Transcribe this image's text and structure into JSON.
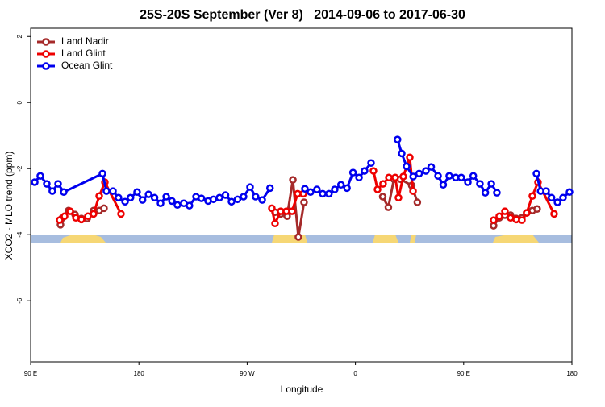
{
  "chart_data": {
    "type": "line",
    "title": "25S-20S September (Ver 8)   2014-09-06 to 2017-06-30",
    "x_label": "Longitude",
    "y_label": "XCO2 - MLO trend (ppm)",
    "xlim": [
      90,
      540
    ],
    "xticks": [
      {
        "value": 90,
        "label": "90 E"
      },
      180,
      {
        "value": 270,
        "label": "90 W"
      },
      {
        "value": 360,
        "label": "0"
      },
      {
        "value": 450,
        "label": "90 E"
      },
      {
        "value": 540,
        "label": "180"
      }
    ],
    "ylim": [
      -7.85,
      2.25
    ],
    "yticks": [
      2,
      0,
      -2,
      -4,
      -6
    ],
    "legend": "top-left",
    "series": [
      {
        "name": "Land Nadir",
        "color": "#a52a2a",
        "x": [
          114.8,
          116.2,
          121.5,
          126.9,
          132.2,
          137,
          142.3,
          147,
          151,
          null,
          293.2,
          297.9,
          303.2,
          308,
          312.6,
          317.3,
          null,
          382.7,
          387.4,
          392,
          397.4,
          406.8,
          411.5,
          null,
          474.9,
          479.6,
          484.3,
          489,
          493.7,
          498.4,
          502.4,
          507.1,
          511.1
        ],
        "values": [
          -3.7,
          -3.5,
          -3.27,
          -3.39,
          -3.51,
          -3.51,
          -3.27,
          -3.27,
          -3.2,
          null,
          -3.32,
          -3.37,
          -3.44,
          -2.34,
          -4.07,
          -3.02,
          null,
          -2.85,
          -3.17,
          -2.32,
          -2.32,
          -2.51,
          -3.02,
          null,
          -3.73,
          -3.49,
          -3.41,
          -3.41,
          -3.51,
          -3.49,
          -3.34,
          -3.27,
          -3.22
        ]
      },
      {
        "name": "Land Glint",
        "color": "#ee0000",
        "x": [
          114.1,
          118.2,
          122.9,
          127.6,
          132.2,
          137.6,
          142.3,
          147,
          151.7,
          165.1,
          null,
          290.5,
          293.2,
          297.9,
          302.6,
          307.3,
          312,
          316.7,
          null,
          375,
          378.4,
          383,
          387.8,
          393.1,
          395.8,
          399.8,
          405.2,
          407.9,
          null,
          474.9,
          479.6,
          484.3,
          489,
          493.7,
          498.4,
          502.4,
          507.1,
          511.8,
          525.2
        ],
        "values": [
          -3.56,
          -3.44,
          -3.29,
          -3.49,
          -3.54,
          -3.44,
          -3.37,
          -2.83,
          -2.41,
          -3.37,
          null,
          -3.2,
          -3.66,
          -3.29,
          -3.29,
          -3.29,
          -2.76,
          -2.76,
          null,
          -2.07,
          -2.63,
          -2.46,
          -2.27,
          -2.27,
          -2.88,
          -2.24,
          -1.66,
          -2.68,
          null,
          -3.56,
          -3.44,
          -3.29,
          -3.49,
          -3.54,
          -3.56,
          -3.34,
          -2.83,
          -2.41,
          -3.37
        ]
      },
      {
        "name": "Ocean Glint",
        "color": "#0000ee",
        "x": [
          93.4,
          98,
          103.4,
          108,
          112.8,
          117.5,
          149.7,
          153,
          158.4,
          163,
          168.5,
          173,
          178.5,
          183,
          188,
          193,
          198,
          202.7,
          207.4,
          212,
          217.4,
          222,
          227.5,
          232,
          237.5,
          242,
          247,
          252,
          257,
          262,
          267,
          272.4,
          277,
          282.5,
          289,
          null,
          318,
          322.7,
          328,
          332.8,
          338,
          342.8,
          348,
          353,
          358,
          363,
          367.6,
          373,
          null,
          395,
          398.5,
          402.5,
          408,
          413,
          418.6,
          423,
          428.7,
          433,
          438,
          443.4,
          448,
          453.5,
          458,
          463.5,
          468,
          473,
          477.6,
          null,
          510.5,
          514,
          518.5,
          523,
          528,
          532.6,
          538
        ],
        "values": [
          -2.41,
          -2.22,
          -2.46,
          -2.68,
          -2.46,
          -2.71,
          -2.15,
          -2.68,
          -2.68,
          -2.88,
          -3.0,
          -2.88,
          -2.71,
          -2.95,
          -2.78,
          -2.88,
          -3.05,
          -2.85,
          -2.98,
          -3.1,
          -3.05,
          -3.12,
          -2.85,
          -2.9,
          -2.98,
          -2.93,
          -2.88,
          -2.8,
          -3.0,
          -2.93,
          -2.85,
          -2.56,
          -2.85,
          -2.95,
          -2.59,
          null,
          -2.61,
          -2.71,
          -2.63,
          -2.76,
          -2.76,
          -2.63,
          -2.49,
          -2.59,
          -2.12,
          -2.27,
          -2.07,
          -1.83,
          null,
          -1.12,
          -1.54,
          -1.93,
          -2.24,
          -2.15,
          -2.07,
          -1.95,
          -2.22,
          -2.49,
          -2.22,
          -2.27,
          -2.27,
          -2.41,
          -2.22,
          -2.46,
          -2.73,
          -2.46,
          -2.73,
          null,
          -2.15,
          -2.68,
          -2.68,
          -2.88,
          -3.02,
          -2.88,
          -2.71
        ]
      }
    ]
  }
}
